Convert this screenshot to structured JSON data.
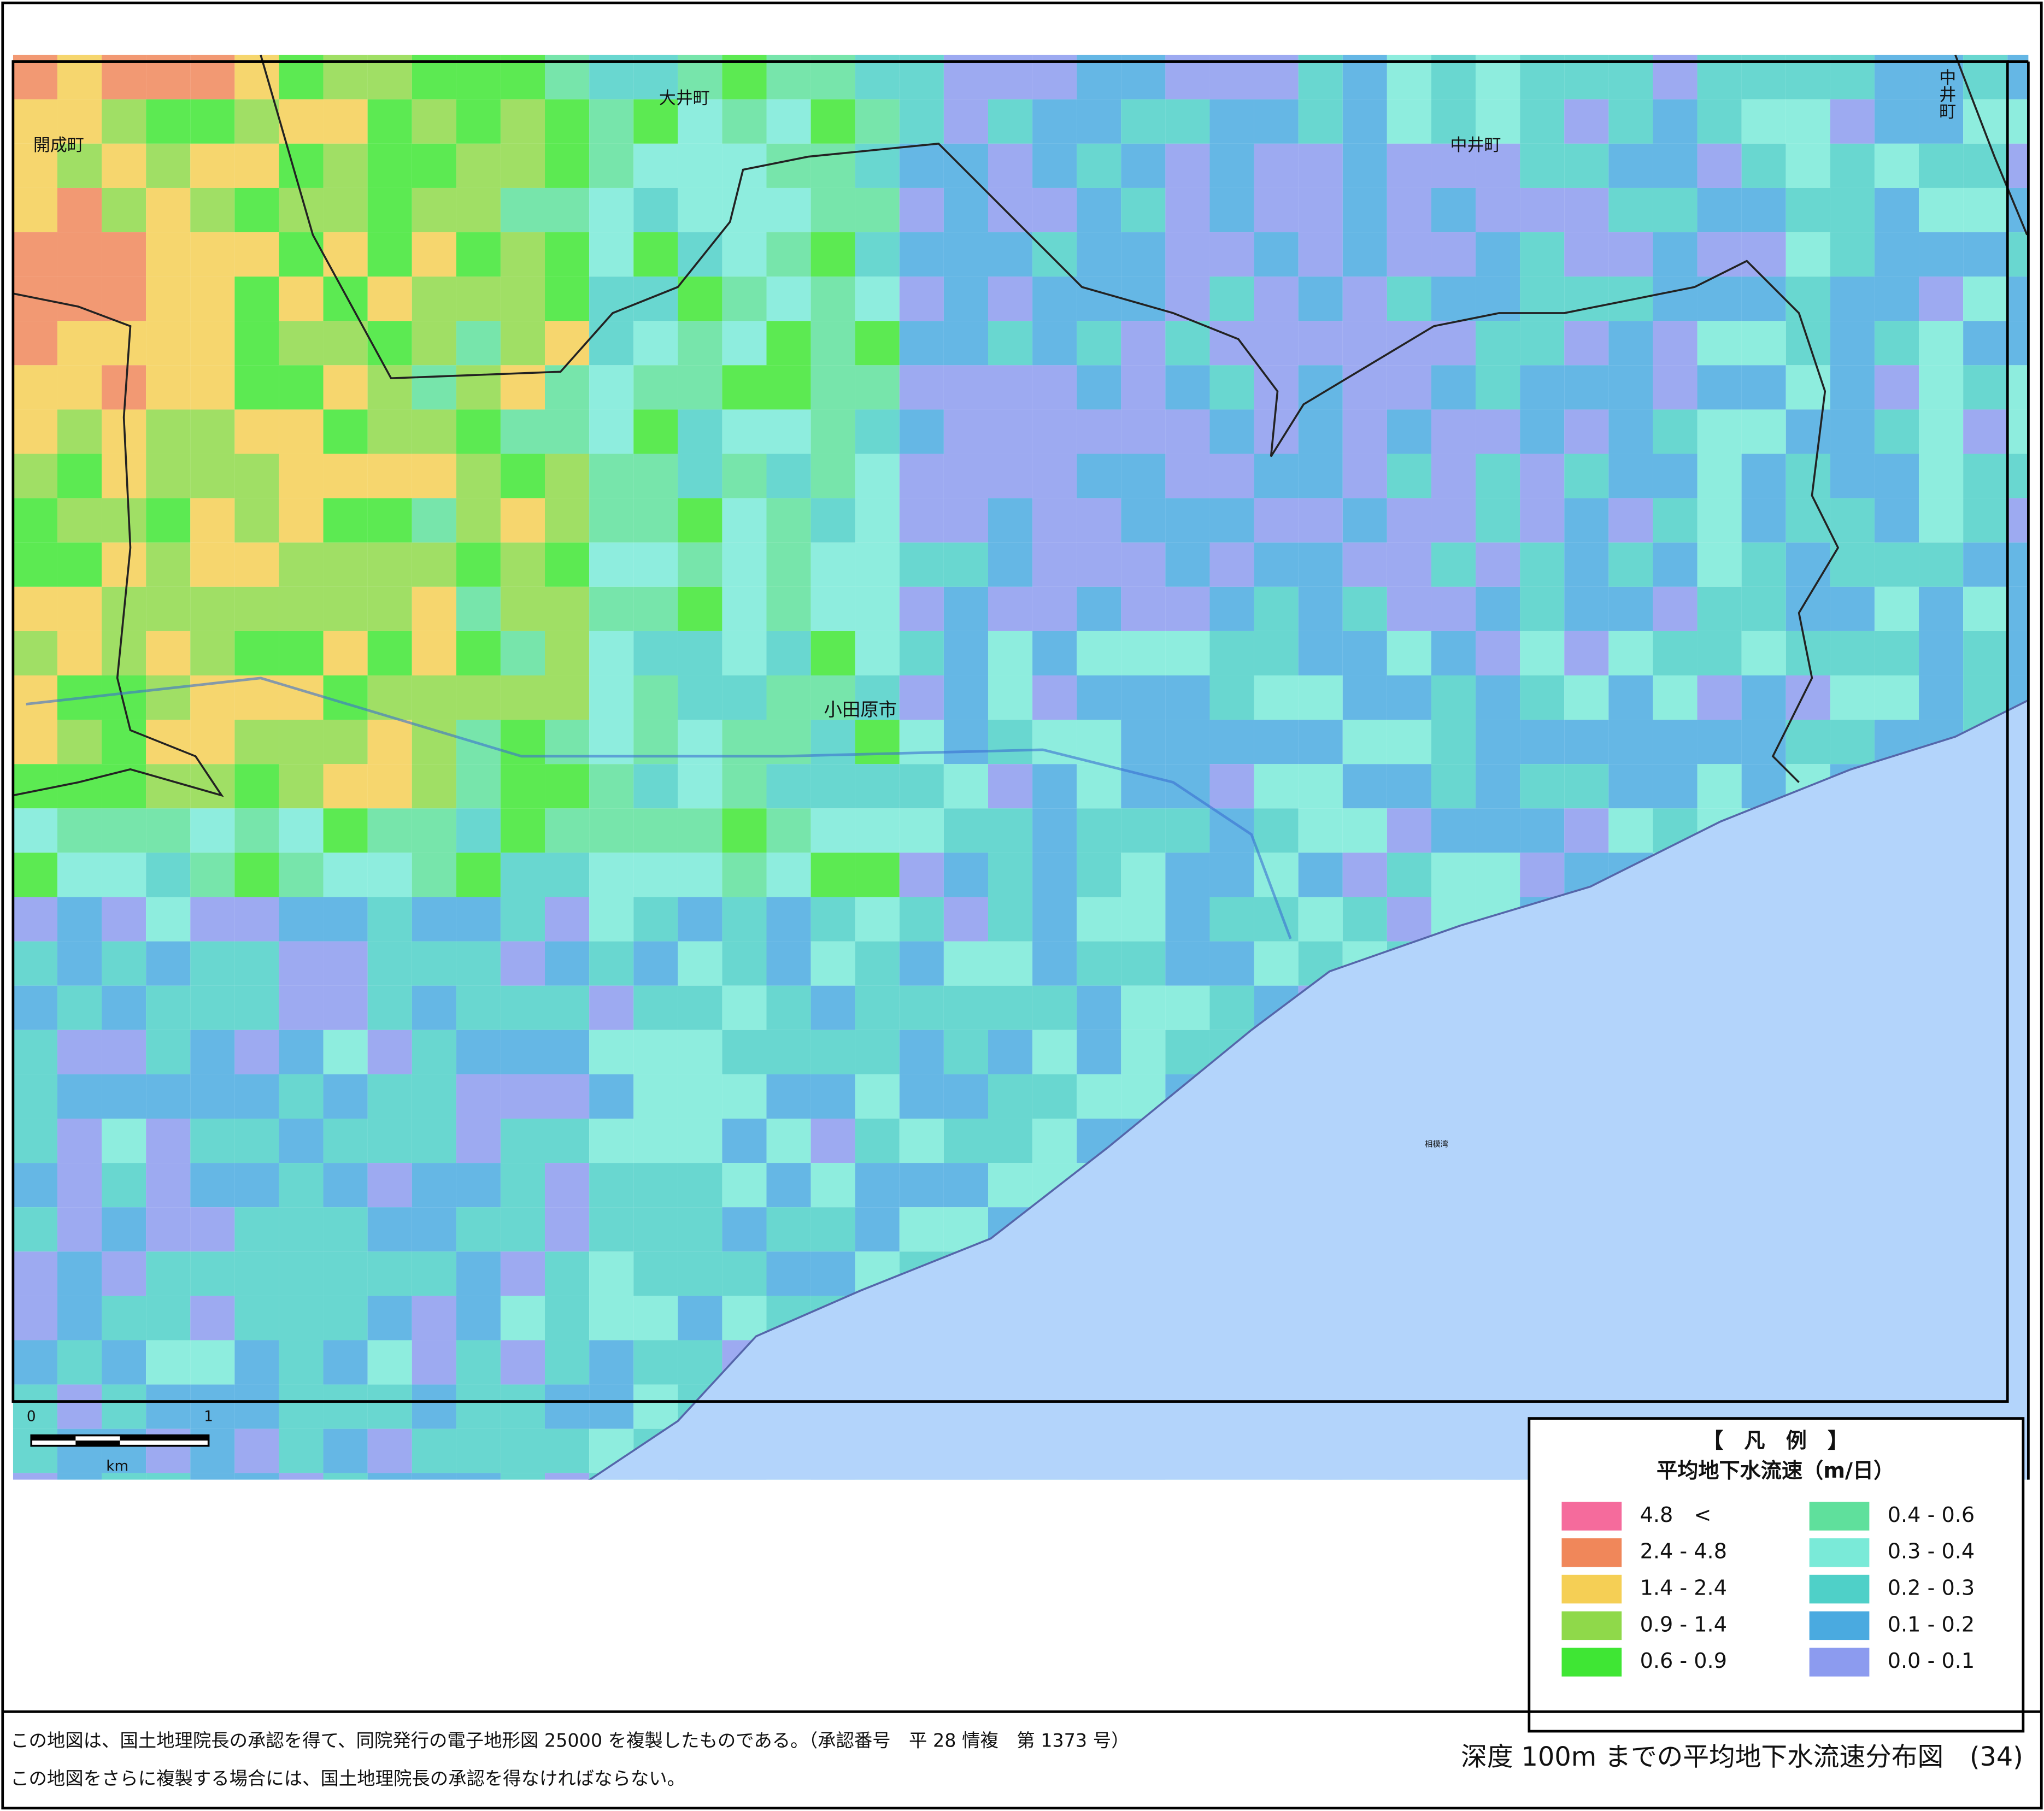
{
  "map": {
    "place_labels": [
      "大井町",
      "中井町",
      "小田原市",
      "開成町",
      "中井町",
      "相模湾"
    ],
    "scale_labels": [
      "0",
      "1",
      "km"
    ]
  },
  "legend": {
    "title": "【　凡　例　】",
    "subtitle": "平均地下水流速（m/日）",
    "items": [
      {
        "label": "4.8　<",
        "color": "#f56b9c"
      },
      {
        "label": "2.4 - 4.8",
        "color": "#f0875a"
      },
      {
        "label": "1.4 - 2.4",
        "color": "#f5cf55"
      },
      {
        "label": "0.9 - 1.4",
        "color": "#8fd94a"
      },
      {
        "label": "0.6 - 0.9",
        "color": "#3fe634"
      },
      {
        "label": "0.4 - 0.6",
        "color": "#5fe09c"
      },
      {
        "label": "0.3 - 0.4",
        "color": "#7aead8"
      },
      {
        "label": "0.2 - 0.3",
        "color": "#4fd0c8"
      },
      {
        "label": "0.1 - 0.2",
        "color": "#4aaae0"
      },
      {
        "label": "0.0 - 0.1",
        "color": "#8c9bef"
      }
    ]
  },
  "footer": {
    "notes": [
      "この地図は、国土地理院長の承認を得て、同院発行の電子地形図 25000 を複製したものである。（承認番号　平 28 情複　第 1373 号）",
      "この地図をさらに複製する場合には、国土地理院長の承認を得なければならない。"
    ],
    "title": "深度 100m までの平均地下水流速分布図　(34)"
  }
}
